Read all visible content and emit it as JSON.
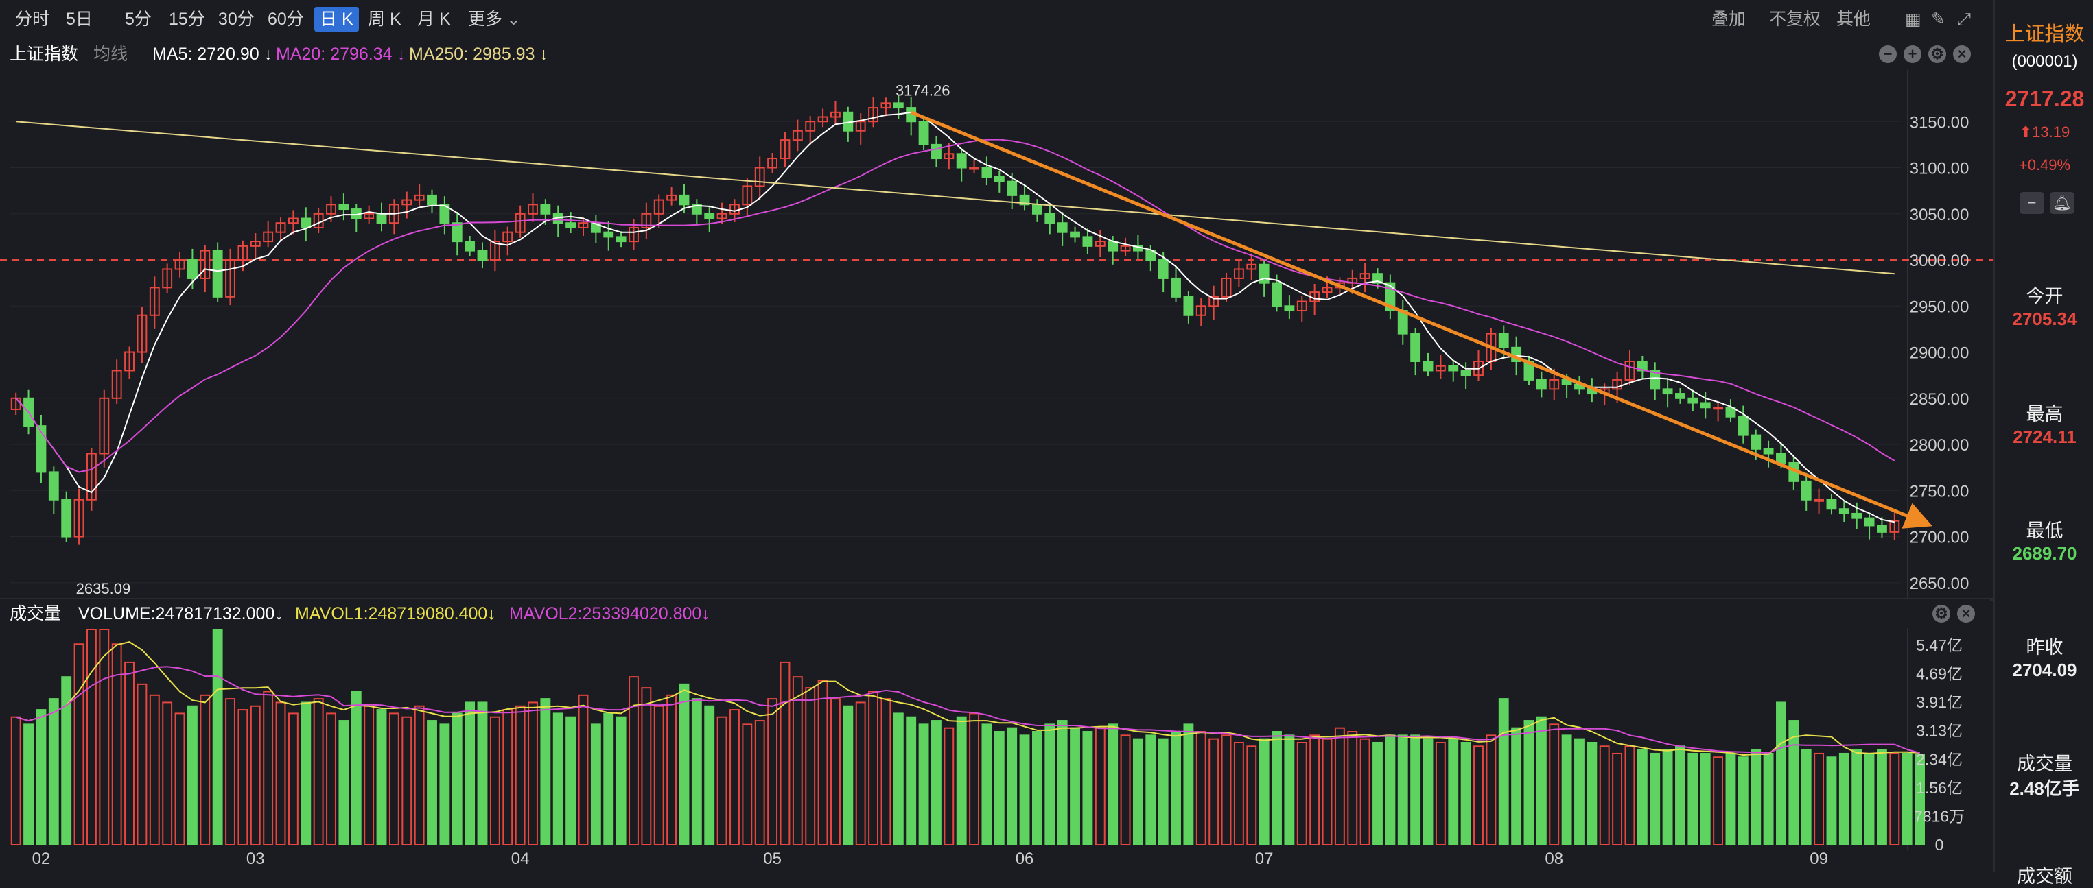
{
  "toolbar": {
    "periods": [
      "分时",
      "5日",
      "5分",
      "15分",
      "30分",
      "60分",
      "日 K",
      "周 K",
      "月 K",
      "更多"
    ],
    "active": "日 K",
    "right_items": [
      "叠加",
      "不复权",
      "其他"
    ]
  },
  "main_legend": {
    "name": "上证指数",
    "line_type": "均线",
    "ma5": "MA5: 2720.90 ↓",
    "ma20": "MA20: 2796.34 ↓",
    "ma250": "MA250: 2985.93 ↓"
  },
  "volume_legend": {
    "label": "成交量",
    "volume": "VOLUME:247817132.000↓",
    "mavol1": "MAVOL1:248719080.400↓",
    "mavol2": "MAVOL2:253394020.800↓"
  },
  "colors": {
    "up": "#e8473f",
    "down": "#5fd35f",
    "ma5": "#ffffff",
    "ma20": "#d54bd6",
    "ma250": "#e6d68a",
    "mavol1": "#e8e04a",
    "mavol2": "#d54bd6",
    "trend": "#f08a24",
    "ref_line": "#e8473f"
  },
  "side": {
    "title": "上证指数",
    "code": "(000001)",
    "price": "2717.28",
    "change": "13.19",
    "change_pct": "+0.49%",
    "open_label": "今开",
    "open": "2705.34",
    "high_label": "最高",
    "high": "2724.11",
    "low_label": "最低",
    "low": "2689.70",
    "prev_label": "昨收",
    "prev": "2704.09",
    "vol_label": "成交量",
    "vol": "2.48亿手",
    "amount_label": "成交额"
  },
  "chart_data": {
    "type": "candlestick",
    "price_axis": {
      "ylim": [
        2635,
        3200
      ],
      "ticks": [
        3150,
        3100,
        3050,
        3000,
        2950,
        2900,
        2850,
        2800,
        2750,
        2700,
        2650
      ],
      "tick_labels": [
        "3150.00",
        "3100.00",
        "3050.00",
        "3000.00",
        "2950.00",
        "2900.00",
        "2850.00",
        "2800.00",
        "2750.00",
        "2700.00",
        "2650.00"
      ]
    },
    "volume_axis": {
      "ylim": [
        0,
        5.9
      ],
      "tick_labels": [
        "5.47亿",
        "4.69亿",
        "3.91亿",
        "3.13亿",
        "2.34亿",
        "1.56亿",
        "7816万",
        "0"
      ],
      "tick_values": [
        5.47,
        4.69,
        3.91,
        3.13,
        2.34,
        1.56,
        0.78,
        0
      ]
    },
    "month_labels": [
      {
        "label": "02",
        "index": 2
      },
      {
        "label": "03",
        "index": 19
      },
      {
        "label": "04",
        "index": 40
      },
      {
        "label": "05",
        "index": 60
      },
      {
        "label": "06",
        "index": 80
      },
      {
        "label": "07",
        "index": 99
      },
      {
        "label": "08",
        "index": 122
      },
      {
        "label": "09",
        "index": 143
      }
    ],
    "reference_line": 3000,
    "annotations": [
      {
        "text": "3174.26",
        "index": 69
      },
      {
        "text": "2635.09",
        "index": 4
      }
    ],
    "trend_line": {
      "from": {
        "index": 71,
        "value": 3160
      },
      "to": {
        "index": 151,
        "value": 2717
      }
    },
    "closes": [
      2850,
      2820,
      2770,
      2740,
      2700,
      2740,
      2790,
      2850,
      2880,
      2900,
      2940,
      2970,
      2990,
      3000,
      2980,
      3010,
      2960,
      3000,
      3015,
      3020,
      3030,
      3040,
      3045,
      3035,
      3050,
      3060,
      3055,
      3045,
      3050,
      3040,
      3060,
      3065,
      3070,
      3060,
      3040,
      3020,
      3010,
      3000,
      3020,
      3030,
      3050,
      3060,
      3050,
      3040,
      3035,
      3040,
      3030,
      3025,
      3020,
      3035,
      3050,
      3065,
      3070,
      3060,
      3050,
      3045,
      3050,
      3060,
      3080,
      3100,
      3110,
      3130,
      3140,
      3150,
      3155,
      3160,
      3140,
      3150,
      3165,
      3170,
      3165,
      3150,
      3125,
      3110,
      3115,
      3100,
      3100,
      3090,
      3085,
      3070,
      3060,
      3050,
      3040,
      3030,
      3025,
      3015,
      3020,
      3010,
      3015,
      3010,
      3000,
      2980,
      2960,
      2940,
      2950,
      2960,
      2980,
      2990,
      2995,
      2975,
      2950,
      2945,
      2955,
      2965,
      2970,
      2975,
      2980,
      2985,
      2975,
      2945,
      2920,
      2890,
      2880,
      2885,
      2880,
      2875,
      2890,
      2920,
      2905,
      2890,
      2870,
      2860,
      2870,
      2865,
      2860,
      2855,
      2860,
      2870,
      2890,
      2880,
      2860,
      2855,
      2850,
      2845,
      2840,
      2840,
      2830,
      2810,
      2795,
      2790,
      2780,
      2760,
      2740,
      2740,
      2730,
      2725,
      2720,
      2712,
      2705,
      2717
    ],
    "volumes": [
      3.5,
      3.3,
      3.7,
      4.0,
      4.6,
      5.5,
      5.9,
      5.9,
      5.5,
      5.0,
      4.4,
      4.1,
      3.9,
      3.6,
      3.8,
      4.1,
      5.9,
      4.0,
      3.7,
      3.8,
      4.2,
      3.9,
      3.6,
      3.9,
      4.0,
      3.6,
      3.4,
      4.2,
      3.8,
      3.7,
      3.6,
      3.5,
      3.8,
      3.4,
      3.3,
      3.6,
      3.9,
      3.9,
      3.5,
      3.7,
      3.8,
      3.9,
      4.0,
      3.6,
      3.5,
      4.1,
      3.3,
      3.6,
      3.5,
      4.6,
      4.3,
      3.8,
      4.1,
      4.4,
      4.0,
      3.8,
      3.5,
      3.7,
      3.3,
      3.4,
      4.0,
      5.0,
      4.6,
      4.3,
      4.5,
      4.0,
      3.8,
      3.9,
      4.2,
      4.0,
      3.6,
      3.5,
      3.3,
      3.4,
      3.2,
      3.5,
      3.6,
      3.3,
      3.1,
      3.2,
      3.0,
      3.1,
      3.3,
      3.4,
      3.2,
      3.1,
      3.2,
      3.3,
      3.0,
      2.9,
      3.0,
      2.9,
      3.1,
      3.3,
      3.1,
      2.9,
      3.0,
      2.8,
      2.7,
      2.9,
      3.1,
      3.0,
      2.8,
      3.0,
      2.9,
      3.2,
      3.1,
      2.9,
      2.8,
      3.0,
      3.0,
      3.0,
      2.9,
      2.8,
      2.9,
      2.8,
      2.7,
      3.0,
      4.0,
      3.2,
      3.4,
      3.5,
      3.3,
      3.0,
      2.9,
      2.8,
      2.7,
      2.5,
      2.7,
      2.6,
      2.5,
      2.6,
      2.7,
      2.5,
      2.5,
      2.4,
      2.5,
      2.4,
      2.6,
      2.5,
      3.9,
      3.4,
      2.6,
      2.5,
      2.4,
      2.5,
      2.6,
      2.5,
      2.6,
      2.5,
      2.5,
      2.48
    ]
  }
}
